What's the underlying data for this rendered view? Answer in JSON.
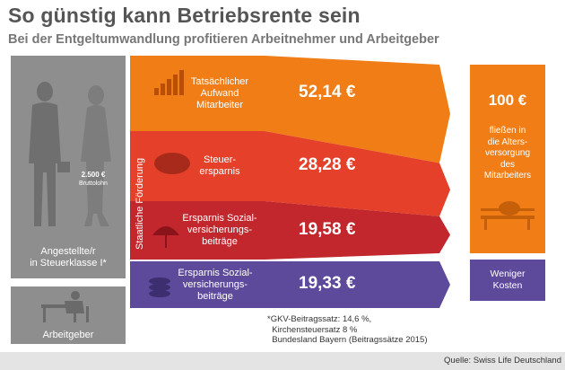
{
  "title": "So günstig kann Betriebsrente sein",
  "subtitle": "Bei der Entgeltumwandlung profitieren Arbeitnehmer und Arbeitgeber",
  "employee": {
    "gross_amount": "2.500 €",
    "gross_label": "Bruttolohn",
    "label_line1": "Angestellte/r",
    "label_line2": "in Steuerklasse I*"
  },
  "employer": {
    "label": "Arbeitgeber"
  },
  "state_support_label": "Staatliche Förderung",
  "chart_data": {
    "type": "bar",
    "title": "So günstig kann Betriebsrente sein",
    "unit": "€",
    "total": {
      "value": 100,
      "label": "100 €",
      "text": [
        "fließen in",
        "die Alters-",
        "versorgung",
        "des",
        "Mitarbeiters"
      ]
    },
    "categories": [
      "Tatsächlicher Aufwand Mitarbeiter",
      "Steuer-ersparnis",
      "Ersparnis Sozial-versicherungs-beiträge",
      "Ersparnis Sozial-versicherungs-beiträge"
    ],
    "values": [
      52.14,
      28.28,
      19.58,
      19.33
    ],
    "rows": [
      {
        "label_lines": [
          "Tatsächlicher",
          "Aufwand",
          "Mitarbeiter"
        ],
        "value": 52.14,
        "display": "52,14 €",
        "color": "#f07d16",
        "group": "Arbeitnehmer"
      },
      {
        "label_lines": [
          "Steuer-",
          "ersparnis"
        ],
        "value": 28.28,
        "display": "28,28 €",
        "color": "#e4402a",
        "group": "Arbeitnehmer"
      },
      {
        "label_lines": [
          "Ersparnis Sozial-",
          "versicherungs-",
          "beiträge"
        ],
        "value": 19.58,
        "display": "19,58 €",
        "color": "#c1272d",
        "group": "Arbeitnehmer"
      },
      {
        "label_lines": [
          "Ersparnis Sozial-",
          "versicherungs-",
          "beiträge"
        ],
        "value": 19.33,
        "display": "19,33 €",
        "color": "#5e4a9a",
        "group": "Arbeitgeber"
      }
    ],
    "employer_result": {
      "label_lines": [
        "Weniger",
        "Kosten"
      ]
    }
  },
  "footnote": "*GKV-Beitragssatz: 14,6 %,\n  Kirchensteuersatz 8 %\n  Bundesland Bayern (Beitragssätze 2015)",
  "source": "Quelle: Swiss Life Deutschland",
  "colors": {
    "orange": "#f07d16",
    "red": "#e4402a",
    "darkred": "#c1272d",
    "purple": "#5e4a9a",
    "gray": "#8e8e8e"
  },
  "icons": [
    "person-couple-icon",
    "coin-stack-icon",
    "piggy-bank-icon",
    "umbrella-icon",
    "desk-worker-icon",
    "coins-icon",
    "bench-piggy-icon"
  ]
}
